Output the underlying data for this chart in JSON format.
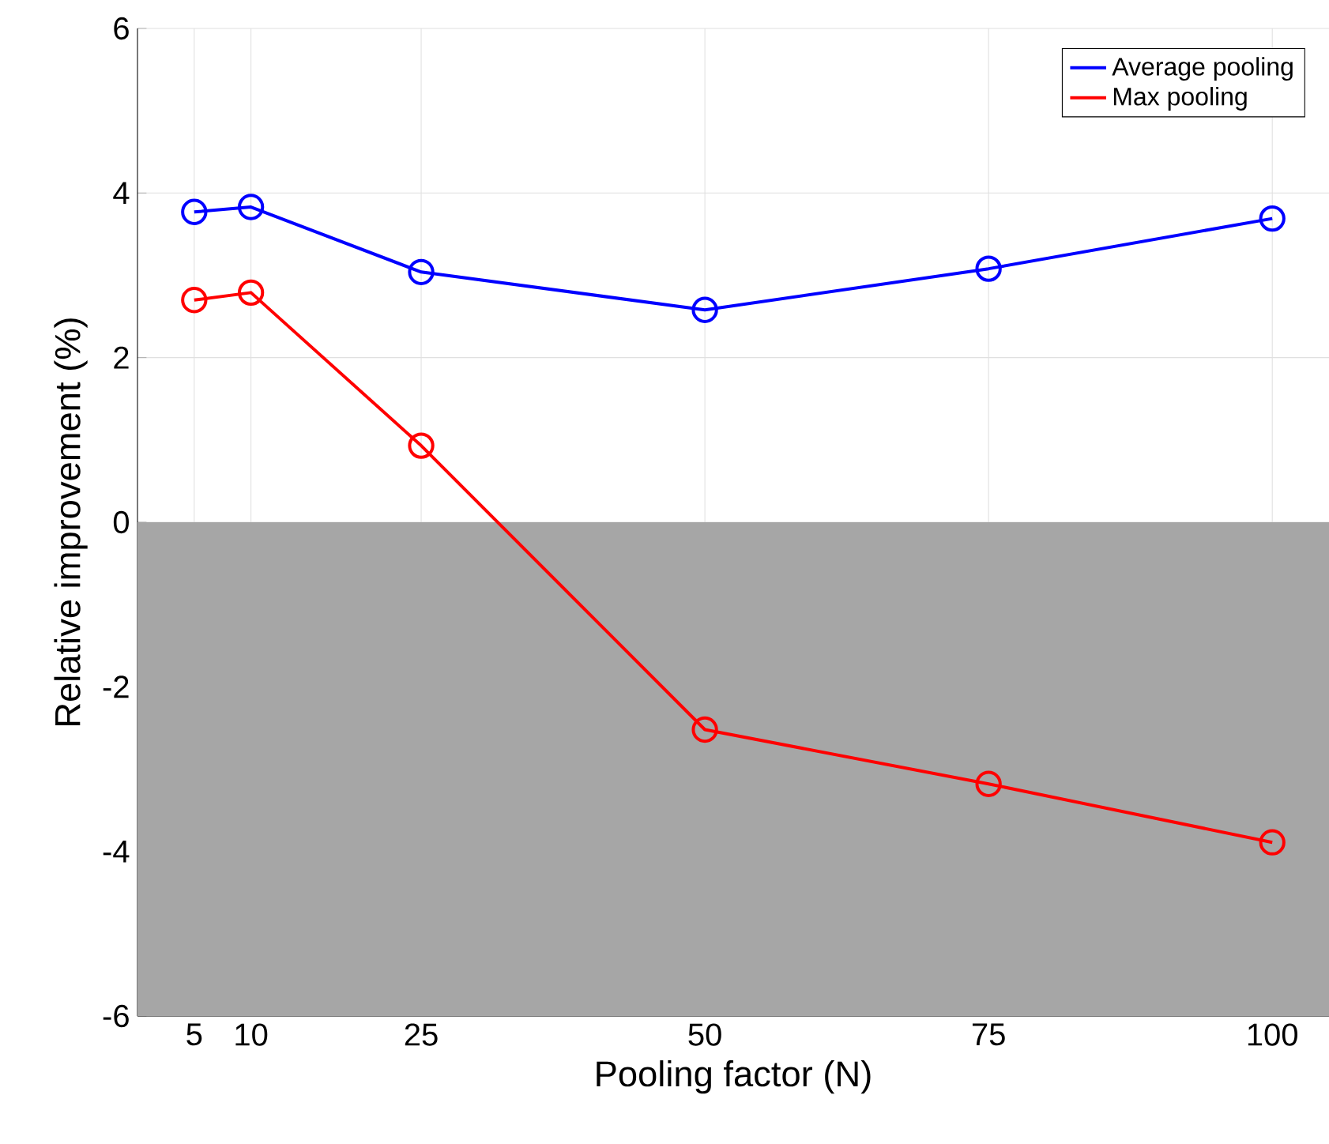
{
  "chart_data": {
    "type": "line",
    "xlabel": "Pooling factor (N)",
    "ylabel": "Relative improvement (%)",
    "x": [
      5,
      10,
      25,
      50,
      75,
      100
    ],
    "series": [
      {
        "name": "Average pooling",
        "color": "#0000ff",
        "values": [
          3.77,
          3.83,
          3.04,
          2.58,
          3.08,
          3.69
        ]
      },
      {
        "name": "Max pooling",
        "color": "#ff0000",
        "values": [
          2.7,
          2.79,
          0.93,
          -2.52,
          -3.18,
          -3.89
        ]
      }
    ],
    "xlim": [
      0,
      105
    ],
    "ylim": [
      -6,
      6
    ],
    "xticks": [
      5,
      10,
      25,
      50,
      75,
      100
    ],
    "yticks": [
      -6,
      -4,
      -2,
      0,
      2,
      4,
      6
    ],
    "bands": [
      {
        "axis": "y",
        "from": -6,
        "to": 0,
        "color": "#a6a6a6"
      }
    ],
    "grid": true,
    "legend": "top right",
    "marker": "circle",
    "line_style": "solid"
  }
}
